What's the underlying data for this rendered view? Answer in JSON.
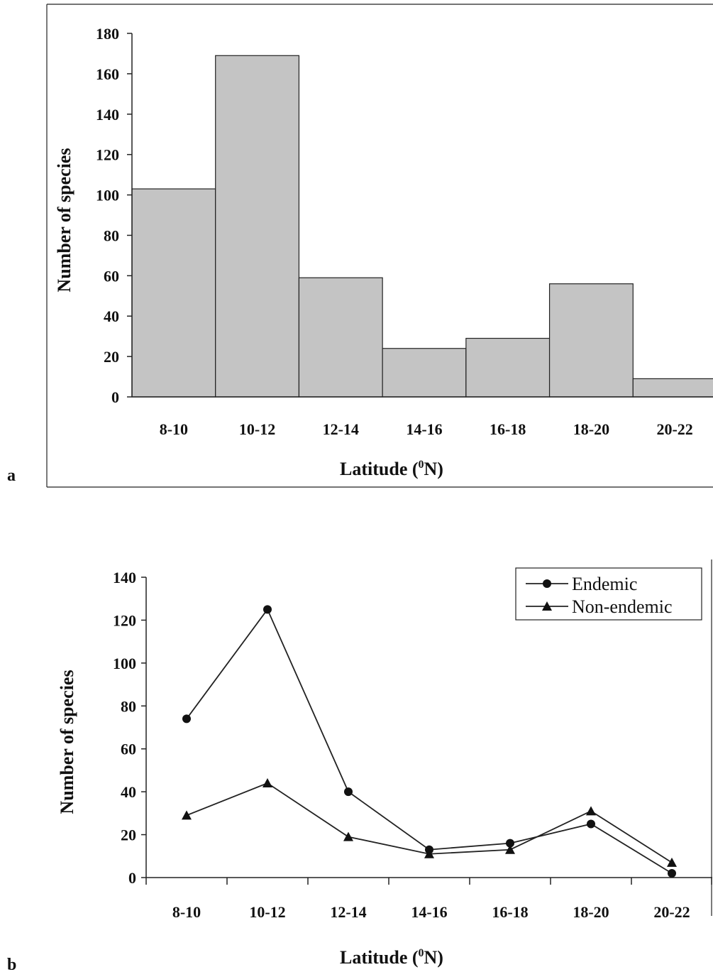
{
  "chart_data": [
    {
      "panel": "a",
      "type": "bar",
      "categories": [
        "8-10",
        "10-12",
        "12-14",
        "14-16",
        "16-18",
        "18-20",
        "20-22"
      ],
      "values": [
        103,
        169,
        59,
        24,
        29,
        56,
        9
      ],
      "title": "",
      "xlabel": "Latitude (",
      "xlabel_sup": "0",
      "xlabel_tail": "N)",
      "ylabel": "Number of species",
      "ylim": [
        0,
        180
      ],
      "yticks": [
        0,
        20,
        40,
        60,
        80,
        100,
        120,
        140,
        160,
        180
      ],
      "grid": false,
      "bar_color": "#c4c4c4"
    },
    {
      "panel": "b",
      "type": "line",
      "categories": [
        "8-10",
        "10-12",
        "12-14",
        "14-16",
        "16-18",
        "18-20",
        "20-22"
      ],
      "series": [
        {
          "name": "Endemic",
          "marker": "circle",
          "values": [
            74,
            125,
            40,
            13,
            16,
            25,
            2
          ]
        },
        {
          "name": "Non-endemic",
          "marker": "triangle",
          "values": [
            29,
            44,
            19,
            11,
            13,
            31,
            7
          ]
        }
      ],
      "title": "",
      "xlabel": "Latitude (",
      "xlabel_sup": "0",
      "xlabel_tail": "N)",
      "ylabel": "Number of species",
      "ylim": [
        0,
        140
      ],
      "yticks": [
        0,
        20,
        40,
        60,
        80,
        100,
        120,
        140
      ],
      "grid": false,
      "legend": "top-right"
    }
  ]
}
